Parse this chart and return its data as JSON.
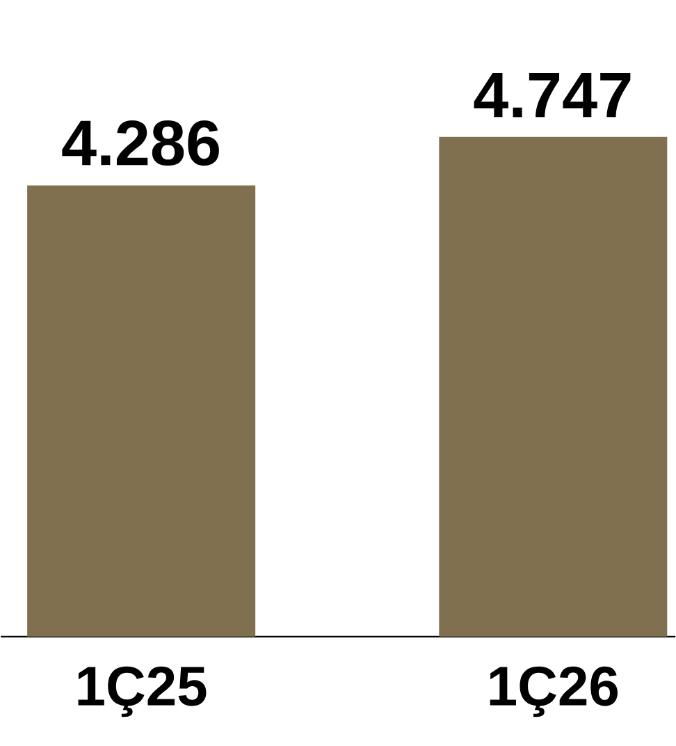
{
  "chart_data": {
    "type": "bar",
    "categories": [
      "1Ç25",
      "1Ç26"
    ],
    "values": [
      4286,
      4747
    ],
    "value_labels": [
      "4.286",
      "4.747"
    ],
    "color": "#807050"
  }
}
